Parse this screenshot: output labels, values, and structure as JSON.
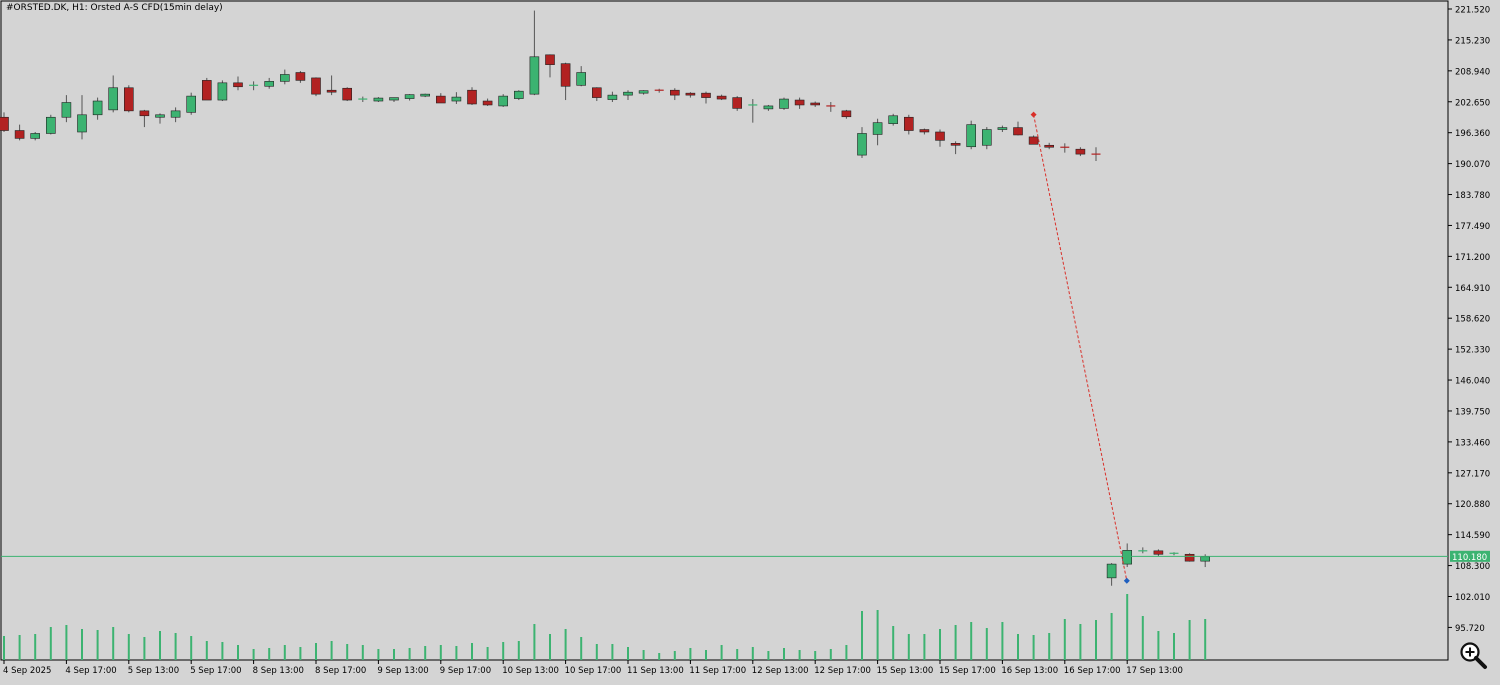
{
  "header": {
    "title": "#ORSTED.DK, H1:  Orsted A-S CFD(15min delay)"
  },
  "colors": {
    "background": "#d4d4d4",
    "bull": "#3cb371",
    "bear": "#b22222",
    "wick": "#555555",
    "volume": "#3cb371",
    "price_line": "#3cb371",
    "price_label_bg": "#3cb371",
    "trade_line": "#d9302a",
    "sell_marker": "#d9302a",
    "buy_marker": "#1f5fbf"
  },
  "chart_data": {
    "type": "candlestick",
    "symbol": "#ORSTED.DK",
    "timeframe": "H1",
    "description": "Orsted A-S CFD(15min delay)",
    "current_price": 110.18,
    "current_price_label": "110.180",
    "y_ticks": [
      "221.520",
      "215.230",
      "208.940",
      "202.650",
      "196.360",
      "190.070",
      "183.780",
      "177.490",
      "171.200",
      "164.910",
      "158.620",
      "152.330",
      "146.040",
      "139.750",
      "133.460",
      "127.170",
      "120.880",
      "114.590",
      "108.300",
      "102.010",
      "95.720"
    ],
    "y_tick_values": [
      221.52,
      215.23,
      208.94,
      202.65,
      196.36,
      190.07,
      183.78,
      177.49,
      171.2,
      164.91,
      158.62,
      152.33,
      146.04,
      139.75,
      133.46,
      127.17,
      120.88,
      114.59,
      108.3,
      102.01,
      95.72
    ],
    "x_tick_labels": [
      "4 Sep 2025",
      "4 Sep 17:00",
      "5 Sep 13:00",
      "5 Sep 17:00",
      "8 Sep 13:00",
      "8 Sep 17:00",
      "9 Sep 13:00",
      "9 Sep 17:00",
      "10 Sep 13:00",
      "10 Sep 17:00",
      "11 Sep 13:00",
      "11 Sep 17:00",
      "12 Sep 13:00",
      "12 Sep 17:00",
      "15 Sep 13:00",
      "15 Sep 17:00",
      "16 Sep 13:00",
      "16 Sep 17:00",
      "17 Sep 13:00"
    ],
    "x_tick_bar_index": [
      0,
      4,
      8,
      12,
      16,
      20,
      24,
      28,
      32,
      36,
      40,
      44,
      48,
      52,
      56,
      60,
      64,
      68,
      72
    ],
    "candles": [
      {
        "o": 199.5,
        "h": 200.5,
        "l": 196.5,
        "c": 196.8,
        "v": 24
      },
      {
        "o": 196.8,
        "h": 198.0,
        "l": 194.8,
        "c": 195.2,
        "v": 25
      },
      {
        "o": 195.2,
        "h": 196.5,
        "l": 194.8,
        "c": 196.2,
        "v": 26
      },
      {
        "o": 196.2,
        "h": 200.0,
        "l": 196.0,
        "c": 199.5,
        "v": 33
      },
      {
        "o": 199.5,
        "h": 204.0,
        "l": 198.5,
        "c": 202.5,
        "v": 35
      },
      {
        "o": 196.5,
        "h": 204.0,
        "l": 195.0,
        "c": 200.0,
        "v": 31
      },
      {
        "o": 200.0,
        "h": 203.5,
        "l": 199.0,
        "c": 202.8,
        "v": 30
      },
      {
        "o": 201.0,
        "h": 208.0,
        "l": 200.5,
        "c": 205.5,
        "v": 33
      },
      {
        "o": 205.5,
        "h": 206.0,
        "l": 200.5,
        "c": 200.8,
        "v": 26
      },
      {
        "o": 200.8,
        "h": 201.0,
        "l": 197.5,
        "c": 199.8,
        "v": 23
      },
      {
        "o": 199.5,
        "h": 200.3,
        "l": 198.2,
        "c": 200.0,
        "v": 29
      },
      {
        "o": 199.5,
        "h": 201.5,
        "l": 198.5,
        "c": 200.8,
        "v": 27
      },
      {
        "o": 200.5,
        "h": 204.5,
        "l": 200.0,
        "c": 203.8,
        "v": 24
      },
      {
        "o": 207.0,
        "h": 207.5,
        "l": 203.5,
        "c": 203.0,
        "v": 19
      },
      {
        "o": 203.0,
        "h": 207.0,
        "l": 202.8,
        "c": 206.5,
        "v": 18
      },
      {
        "o": 206.5,
        "h": 207.8,
        "l": 205.0,
        "c": 205.7,
        "v": 15
      },
      {
        "o": 205.7,
        "h": 206.8,
        "l": 205.0,
        "c": 206.0,
        "v": 11
      },
      {
        "o": 205.8,
        "h": 207.5,
        "l": 205.3,
        "c": 206.8,
        "v": 12
      },
      {
        "o": 206.8,
        "h": 209.2,
        "l": 206.2,
        "c": 208.2,
        "v": 15
      },
      {
        "o": 208.6,
        "h": 208.9,
        "l": 206.5,
        "c": 207.0,
        "v": 13
      },
      {
        "o": 207.5,
        "h": 207.6,
        "l": 203.8,
        "c": 204.2,
        "v": 17
      },
      {
        "o": 205.0,
        "h": 208.0,
        "l": 204.0,
        "c": 204.6,
        "v": 19
      },
      {
        "o": 205.4,
        "h": 205.6,
        "l": 202.8,
        "c": 203.0,
        "v": 16
      },
      {
        "o": 203.2,
        "h": 203.7,
        "l": 202.6,
        "c": 203.2,
        "v": 15
      },
      {
        "o": 202.8,
        "h": 203.6,
        "l": 202.6,
        "c": 203.4,
        "v": 11
      },
      {
        "o": 203.0,
        "h": 203.5,
        "l": 202.6,
        "c": 203.5,
        "v": 11
      },
      {
        "o": 203.3,
        "h": 204.2,
        "l": 202.9,
        "c": 204.1,
        "v": 12
      },
      {
        "o": 203.8,
        "h": 204.3,
        "l": 203.6,
        "c": 204.2,
        "v": 14
      },
      {
        "o": 203.8,
        "h": 204.4,
        "l": 202.4,
        "c": 202.4,
        "v": 15
      },
      {
        "o": 202.8,
        "h": 204.6,
        "l": 202.2,
        "c": 203.6,
        "v": 14
      },
      {
        "o": 205.0,
        "h": 205.6,
        "l": 202.0,
        "c": 202.2,
        "v": 17
      },
      {
        "o": 202.8,
        "h": 203.3,
        "l": 201.8,
        "c": 202.0,
        "v": 13
      },
      {
        "o": 201.8,
        "h": 204.2,
        "l": 201.6,
        "c": 203.8,
        "v": 18
      },
      {
        "o": 203.3,
        "h": 205.0,
        "l": 203.0,
        "c": 204.8,
        "v": 19
      },
      {
        "o": 204.2,
        "h": 221.2,
        "l": 204.0,
        "c": 211.8,
        "v": 36
      },
      {
        "o": 212.2,
        "h": 212.3,
        "l": 207.6,
        "c": 210.2,
        "v": 26
      },
      {
        "o": 210.4,
        "h": 210.6,
        "l": 203.0,
        "c": 205.8,
        "v": 31
      },
      {
        "o": 206.0,
        "h": 209.9,
        "l": 205.8,
        "c": 208.6,
        "v": 23
      },
      {
        "o": 205.5,
        "h": 205.6,
        "l": 202.8,
        "c": 203.5,
        "v": 16
      },
      {
        "o": 203.1,
        "h": 204.7,
        "l": 202.6,
        "c": 204.0,
        "v": 16
      },
      {
        "o": 204.0,
        "h": 205.0,
        "l": 203.0,
        "c": 204.6,
        "v": 13
      },
      {
        "o": 204.4,
        "h": 205.0,
        "l": 204.1,
        "c": 204.9,
        "v": 10
      },
      {
        "o": 205.0,
        "h": 205.3,
        "l": 204.5,
        "c": 204.7,
        "v": 7
      },
      {
        "o": 205.0,
        "h": 205.4,
        "l": 203.0,
        "c": 204.0,
        "v": 9
      },
      {
        "o": 204.4,
        "h": 204.6,
        "l": 203.5,
        "c": 204.0,
        "v": 12
      },
      {
        "o": 204.4,
        "h": 204.7,
        "l": 202.3,
        "c": 203.5,
        "v": 10
      },
      {
        "o": 203.8,
        "h": 204.1,
        "l": 203.0,
        "c": 203.2,
        "v": 15
      },
      {
        "o": 203.5,
        "h": 203.8,
        "l": 200.8,
        "c": 201.3,
        "v": 11
      },
      {
        "o": 202.0,
        "h": 203.2,
        "l": 198.4,
        "c": 202.0,
        "v": 13
      },
      {
        "o": 201.2,
        "h": 202.0,
        "l": 200.8,
        "c": 201.8,
        "v": 9
      },
      {
        "o": 201.3,
        "h": 203.5,
        "l": 201.0,
        "c": 203.2,
        "v": 12
      },
      {
        "o": 203.0,
        "h": 203.5,
        "l": 201.2,
        "c": 202.0,
        "v": 10
      },
      {
        "o": 202.4,
        "h": 202.7,
        "l": 201.6,
        "c": 202.0,
        "v": 9
      },
      {
        "o": 201.8,
        "h": 202.6,
        "l": 200.6,
        "c": 201.6,
        "v": 11
      },
      {
        "o": 200.8,
        "h": 201.0,
        "l": 199.2,
        "c": 199.6,
        "v": 15
      },
      {
        "o": 191.8,
        "h": 197.5,
        "l": 191.2,
        "c": 196.2,
        "v": 49
      },
      {
        "o": 196.0,
        "h": 199.2,
        "l": 193.8,
        "c": 198.4,
        "v": 50
      },
      {
        "o": 198.2,
        "h": 200.2,
        "l": 197.8,
        "c": 199.8,
        "v": 34
      },
      {
        "o": 199.5,
        "h": 200.0,
        "l": 196.0,
        "c": 196.8,
        "v": 26
      },
      {
        "o": 197.0,
        "h": 197.2,
        "l": 196.0,
        "c": 196.5,
        "v": 26
      },
      {
        "o": 196.5,
        "h": 197.0,
        "l": 193.5,
        "c": 194.8,
        "v": 31
      },
      {
        "o": 194.2,
        "h": 194.6,
        "l": 192.0,
        "c": 193.8,
        "v": 35
      },
      {
        "o": 193.5,
        "h": 198.8,
        "l": 193.0,
        "c": 198.0,
        "v": 38
      },
      {
        "o": 193.8,
        "h": 197.5,
        "l": 193.0,
        "c": 197.0,
        "v": 32
      },
      {
        "o": 197.0,
        "h": 197.8,
        "l": 196.5,
        "c": 197.4,
        "v": 38
      },
      {
        "o": 197.4,
        "h": 198.6,
        "l": 195.8,
        "c": 195.9,
        "v": 26
      },
      {
        "o": 195.5,
        "h": 195.8,
        "l": 194.0,
        "c": 194.0,
        "v": 25
      },
      {
        "o": 193.8,
        "h": 194.3,
        "l": 193.0,
        "c": 193.4,
        "v": 27
      },
      {
        "o": 193.4,
        "h": 194.2,
        "l": 192.3,
        "c": 193.1,
        "v": 41
      },
      {
        "o": 193.0,
        "h": 193.4,
        "l": 191.6,
        "c": 192.0,
        "v": 36
      },
      {
        "o": 192.0,
        "h": 193.4,
        "l": 190.6,
        "c": 191.9,
        "v": 40
      },
      {
        "o": 105.8,
        "h": 108.8,
        "l": 104.2,
        "c": 108.6,
        "v": 47
      },
      {
        "o": 108.6,
        "h": 112.8,
        "l": 108.0,
        "c": 111.4,
        "v": 66
      },
      {
        "o": 111.3,
        "h": 112.0,
        "l": 110.8,
        "c": 111.3,
        "v": 44
      },
      {
        "o": 111.3,
        "h": 111.6,
        "l": 110.2,
        "c": 110.6,
        "v": 29
      },
      {
        "o": 110.7,
        "h": 111.0,
        "l": 110.4,
        "c": 110.8,
        "v": 27
      },
      {
        "o": 110.6,
        "h": 110.8,
        "l": 109.1,
        "c": 109.2,
        "v": 40
      },
      {
        "o": 109.2,
        "h": 110.6,
        "l": 108.0,
        "c": 110.1,
        "v": 41
      }
    ],
    "trade": {
      "type": "sell",
      "from_bar": 66,
      "from_price": 198.4,
      "to_bar": 73,
      "to_price": 105.2
    },
    "grid": false
  },
  "toolbar": {
    "zoom_icon": "magnifier-plus-icon"
  }
}
